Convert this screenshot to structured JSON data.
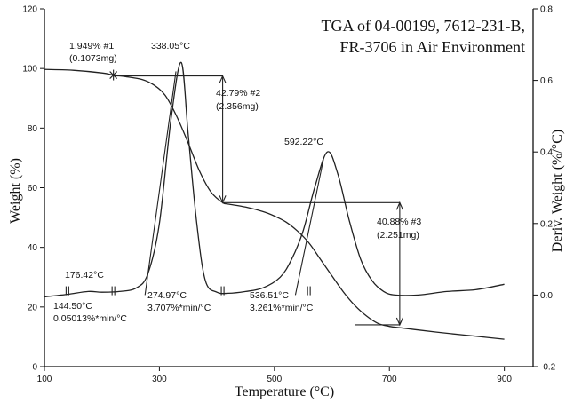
{
  "chart_data": {
    "type": "line",
    "title": [
      "TGA of 04-00199, 7612-231-B,",
      "FR-3706 in Air Environment"
    ],
    "xlabel": "Temperature (°C)",
    "ylabel": "Weight (%)",
    "y2label": "Deriv. Weight (%/°C)",
    "xlim": [
      100,
      950
    ],
    "ylim": [
      0,
      120
    ],
    "y2lim": [
      -0.2,
      0.8
    ],
    "x_ticks": [
      100,
      300,
      500,
      700,
      900
    ],
    "y_ticks": [
      0,
      20,
      40,
      60,
      80,
      100,
      120
    ],
    "y2_ticks": [
      -0.2,
      0.0,
      0.2,
      0.4,
      0.6,
      0.8
    ],
    "grid": false,
    "series": [
      {
        "axis": "left",
        "x": [
          100,
          150,
          200,
          220,
          240,
          270,
          290,
          310,
          330,
          350,
          370,
          390,
          410,
          420,
          450,
          480,
          500,
          520,
          540,
          560,
          580,
          600,
          620,
          640,
          660,
          680,
          700,
          720,
          750,
          800,
          850,
          900
        ],
        "values": [
          99.7,
          99.4,
          98.5,
          97.8,
          97.3,
          96.3,
          94.5,
          91.0,
          84.0,
          75.0,
          65.5,
          58.5,
          55.0,
          54.5,
          53.5,
          52.0,
          50.5,
          48.5,
          45.5,
          41.5,
          36.0,
          30.5,
          25.0,
          20.5,
          17.0,
          14.5,
          13.5,
          13.0,
          12.3,
          11.2,
          10.2,
          9.2
        ]
      },
      {
        "axis": "right",
        "x": [
          100,
          140,
          176,
          200,
          230,
          260,
          280,
          300,
          320,
          338,
          350,
          365,
          380,
          400,
          420,
          450,
          480,
          510,
          530,
          550,
          570,
          592,
          610,
          630,
          650,
          670,
          690,
          710,
          750,
          800,
          850,
          900
        ],
        "values": [
          -0.005,
          0.002,
          0.01,
          0.008,
          0.01,
          0.02,
          0.06,
          0.2,
          0.49,
          0.65,
          0.45,
          0.2,
          0.04,
          0.008,
          0.005,
          0.01,
          0.02,
          0.05,
          0.1,
          0.18,
          0.3,
          0.4,
          0.34,
          0.21,
          0.1,
          0.04,
          0.01,
          0.0,
          0.0,
          0.01,
          0.015,
          0.03
        ]
      }
    ],
    "annotations": {
      "loss1_pct": "1.949% #1",
      "loss1_mass": "(0.1073mg)",
      "loss2_pct": "42.79% #2",
      "loss2_mass": "(2.356mg)",
      "loss3_pct": "40.88% #3",
      "loss3_mass": "(2.251mg)",
      "peak1": "338.05°C",
      "peak2": "592.22°C",
      "peak_small": "176.42°C",
      "onset1_temp": "144.50°C",
      "onset1_rate": "0.05013%*min/°C",
      "onset2_temp": "274.97°C",
      "onset2_rate": "3.707%*min/°C",
      "onset3_temp": "536.51°C",
      "onset3_rate": "3.261%*min/°C"
    },
    "annotation_values": {
      "step1": {
        "x": 220,
        "y_top": 99.7,
        "y_bot": 97.8
      },
      "step2": {
        "x": 410,
        "y_top": 97.5,
        "y_bot": 55.0
      },
      "step3": {
        "x": 718,
        "y_top": 55.0,
        "y_bot": 14.0
      },
      "peak1": {
        "x": 338.05,
        "y": 0.65
      },
      "peak2": {
        "x": 592.22,
        "y": 0.4
      },
      "onset2": {
        "x": 274.97
      },
      "onset3": {
        "x": 536.51
      }
    }
  }
}
